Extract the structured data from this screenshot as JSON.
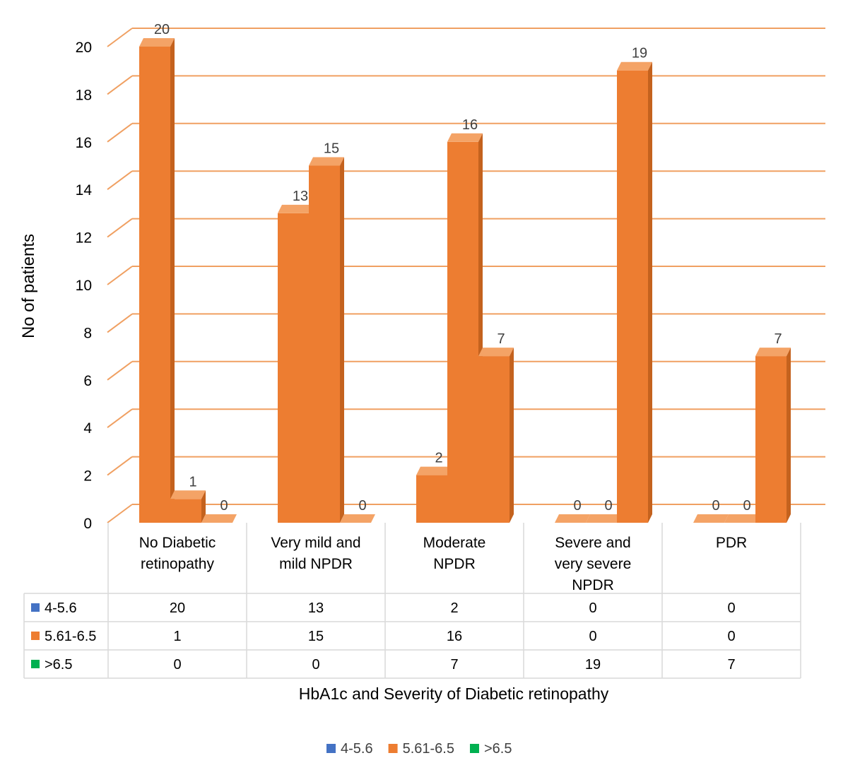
{
  "chart_data": {
    "type": "bar",
    "style": "3d-column-with-data-table",
    "categories": [
      [
        "No Diabetic",
        "retinopathy"
      ],
      [
        "Very mild and",
        "mild NPDR"
      ],
      [
        "Moderate",
        "NPDR"
      ],
      [
        "Severe and",
        "very severe",
        "NPDR"
      ],
      [
        "PDR"
      ]
    ],
    "series": [
      {
        "name": "4-5.6",
        "color": "#4472C4",
        "values": [
          20,
          13,
          2,
          0,
          0
        ]
      },
      {
        "name": "5.61-6.5",
        "color": "#ED7D31",
        "values": [
          1,
          15,
          16,
          0,
          0
        ]
      },
      {
        "name": ">6.5",
        "color": "#00B050",
        "values": [
          0,
          0,
          7,
          19,
          7
        ]
      }
    ],
    "render_color": "#ED7D31",
    "xlabel": "HbA1c and Severity of Diabetic retinopathy",
    "ylabel": "No of patients",
    "ylim": [
      0,
      20
    ],
    "yticks": [
      0,
      2,
      4,
      6,
      8,
      10,
      12,
      14,
      16,
      18,
      20
    ],
    "grid": true,
    "legend": "bottom"
  }
}
